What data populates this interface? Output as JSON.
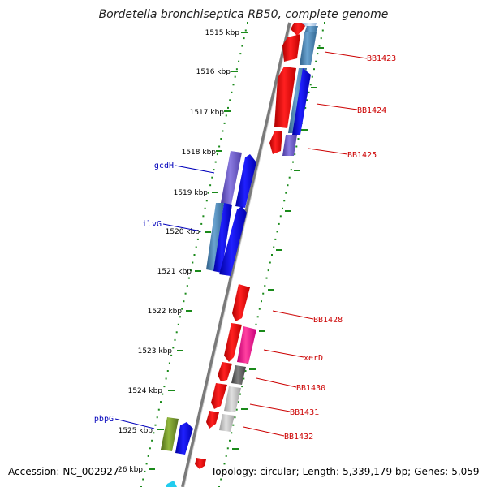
{
  "title": "Bordetella bronchiseptica RB50, complete genome",
  "footer": {
    "accession_label": "Accession:",
    "accession": "NC_002927",
    "topology_label": "Topology:",
    "topology": "circular;",
    "length_label": "Length:",
    "length": "5,339,179 bp;",
    "genes_label": "Genes:",
    "genes": "5,059"
  },
  "scale_ticks": [
    "1515 kbp",
    "1516 kbp",
    "1517 kbp",
    "1518 kbp",
    "1519 kbp",
    "1520 kbp",
    "1521 kbp",
    "1522 kbp",
    "1523 kbp",
    "1524 kbp",
    "1525 kbp",
    "26 kbp"
  ],
  "gene_labels": {
    "right": [
      "BB1423",
      "BB1424",
      "BB1425",
      "BB1428",
      "xerD",
      "BB1430",
      "BB1431",
      "BB1432"
    ],
    "left": [
      "gcdH",
      "ilvG",
      "pbpG"
    ]
  },
  "colors": {
    "backbone": "#808080",
    "tick_dots": "#1a8a1a",
    "label_right": "#cc0000",
    "label_left": "#0000bb",
    "red": "#ff0000",
    "blue": "#0000ee",
    "steelblue": "#4682b4",
    "purple": "#6a5acd",
    "pink": "#ff1493",
    "darkgray": "#555555",
    "lightgray": "#bbbbbb",
    "olive": "#6b8e23",
    "cyan": "#22ccee"
  }
}
